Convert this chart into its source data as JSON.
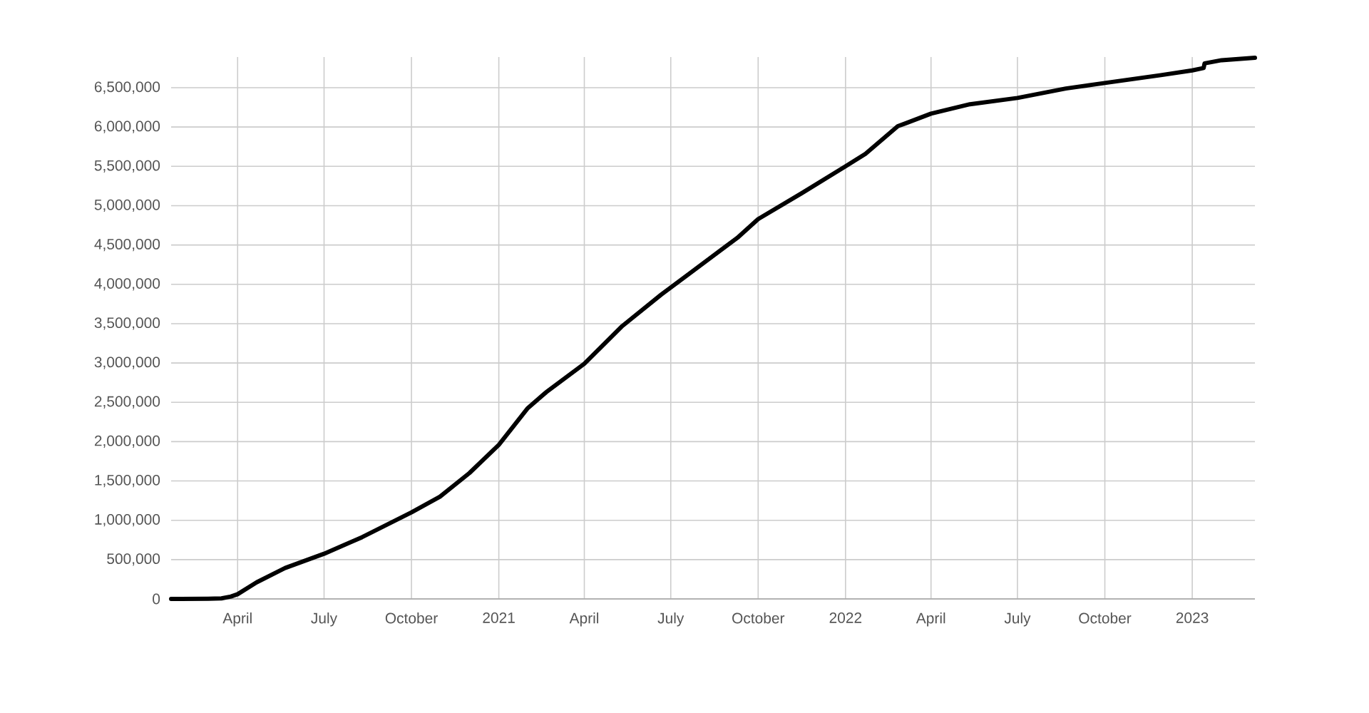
{
  "chart_data": {
    "type": "line",
    "color": "#000000",
    "grid": true,
    "xlim": [
      "2020-01-22",
      "2023-03-08"
    ],
    "ylim": [
      0,
      6890000
    ],
    "xticks": [
      {
        "value": "2020-04-01",
        "label": "April"
      },
      {
        "value": "2020-07-01",
        "label": "July"
      },
      {
        "value": "2020-10-01",
        "label": "October"
      },
      {
        "value": "2021-01-01",
        "label": "2021"
      },
      {
        "value": "2021-04-01",
        "label": "April"
      },
      {
        "value": "2021-07-01",
        "label": "July"
      },
      {
        "value": "2021-10-01",
        "label": "October"
      },
      {
        "value": "2022-01-01",
        "label": "2022"
      },
      {
        "value": "2022-04-01",
        "label": "April"
      },
      {
        "value": "2022-07-01",
        "label": "July"
      },
      {
        "value": "2022-10-01",
        "label": "October"
      },
      {
        "value": "2023-01-01",
        "label": "2023"
      }
    ],
    "yticks": [
      0,
      {
        "value": 500000,
        "label": "500,000"
      },
      {
        "value": 1000000,
        "label": "1,000,000"
      },
      {
        "value": 1500000,
        "label": "1,500,000"
      },
      {
        "value": 2000000,
        "label": "2,000,000"
      },
      {
        "value": 2500000,
        "label": "2,500,000"
      },
      {
        "value": 3000000,
        "label": "3,000,000"
      },
      {
        "value": 3500000,
        "label": "3,500,000"
      },
      {
        "value": 4000000,
        "label": "4,000,000"
      },
      {
        "value": 4500000,
        "label": "4,500,000"
      },
      {
        "value": 5000000,
        "label": "5,000,000"
      },
      {
        "value": 5500000,
        "label": "5,500,000"
      },
      {
        "value": 6000000,
        "label": "6,000,000"
      },
      {
        "value": 6500000,
        "label": "6,500,000"
      }
    ],
    "x": [
      "2020-01-22",
      "2020-03-01",
      "2020-03-15",
      "2020-03-25",
      "2020-04-01",
      "2020-04-21",
      "2020-05-21",
      "2020-07-01",
      "2020-08-10",
      "2020-10-01",
      "2020-10-31",
      "2020-12-01",
      "2021-01-01",
      "2021-01-31",
      "2021-02-20",
      "2021-04-01",
      "2021-05-11",
      "2021-06-21",
      "2021-07-21",
      "2021-09-09",
      "2021-10-01",
      "2021-11-16",
      "2022-01-01",
      "2022-01-22",
      "2022-02-25",
      "2022-04-01",
      "2022-05-12",
      "2022-07-01",
      "2022-08-21",
      "2022-10-01",
      "2022-11-29",
      "2023-01-01",
      "2023-01-13",
      "2023-01-14",
      "2023-02-01",
      "2023-03-08"
    ],
    "values": [
      0,
      3000,
      7000,
      30000,
      60000,
      211000,
      393000,
      574000,
      785000,
      1100000,
      1300000,
      1600000,
      1960000,
      2420000,
      2630000,
      2990000,
      3470000,
      3870000,
      4140000,
      4590000,
      4830000,
      5160000,
      5500000,
      5660000,
      6010000,
      6170000,
      6290000,
      6370000,
      6490000,
      6560000,
      6660000,
      6720000,
      6750000,
      6810000,
      6850000,
      6880000
    ]
  }
}
